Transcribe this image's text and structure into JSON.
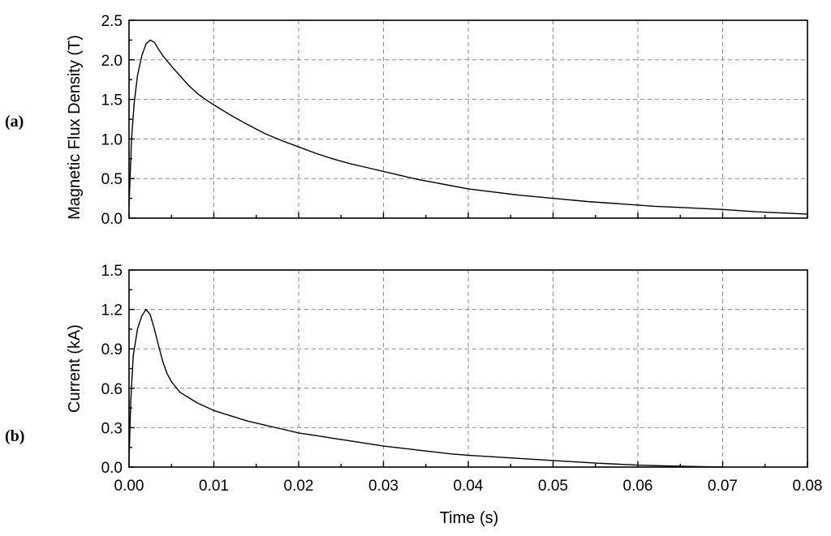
{
  "chart_data": [
    {
      "panel_label": "(a)",
      "type": "line",
      "ylabel": "Magnetic Flux Density (T)",
      "xlabel": "",
      "xlim": [
        0,
        0.08
      ],
      "ylim": [
        0,
        2.5
      ],
      "xticks": [
        0,
        0.01,
        0.02,
        0.03,
        0.04,
        0.05,
        0.06,
        0.07,
        0.08
      ],
      "yticks": [
        0.0,
        0.5,
        1.0,
        1.5,
        2.0,
        2.5
      ],
      "ytick_labels": [
        "0.0",
        "0.5",
        "1.0",
        "1.5",
        "2.0",
        "2.5"
      ],
      "grid": true,
      "series": [
        {
          "x": [
            0,
            0.0003,
            0.0006,
            0.001,
            0.0015,
            0.002,
            0.0025,
            0.003,
            0.0035,
            0.004,
            0.005,
            0.006,
            0.007,
            0.008,
            0.009,
            0.01,
            0.012,
            0.014,
            0.016,
            0.018,
            0.02,
            0.022,
            0.024,
            0.026,
            0.028,
            0.03,
            0.032,
            0.034,
            0.036,
            0.038,
            0.04,
            0.043,
            0.046,
            0.05,
            0.054,
            0.058,
            0.062,
            0.066,
            0.07,
            0.074,
            0.078,
            0.08
          ],
          "y": [
            0.15,
            1.0,
            1.45,
            1.8,
            2.05,
            2.2,
            2.25,
            2.22,
            2.13,
            2.05,
            1.92,
            1.8,
            1.68,
            1.58,
            1.5,
            1.43,
            1.3,
            1.18,
            1.07,
            0.98,
            0.9,
            0.82,
            0.75,
            0.69,
            0.64,
            0.59,
            0.54,
            0.49,
            0.45,
            0.41,
            0.37,
            0.33,
            0.29,
            0.25,
            0.21,
            0.18,
            0.15,
            0.13,
            0.11,
            0.08,
            0.06,
            0.05
          ]
        }
      ]
    },
    {
      "panel_label": "(b)",
      "type": "line",
      "ylabel": "Current (kA)",
      "xlabel": "Time (s)",
      "xlim": [
        0,
        0.08
      ],
      "ylim": [
        0,
        1.5
      ],
      "xticks": [
        0,
        0.01,
        0.02,
        0.03,
        0.04,
        0.05,
        0.06,
        0.07,
        0.08
      ],
      "xtick_labels": [
        "0.00",
        "0.01",
        "0.02",
        "0.03",
        "0.04",
        "0.05",
        "0.06",
        "0.07",
        "0.08"
      ],
      "yticks": [
        0.0,
        0.3,
        0.6,
        0.9,
        1.2,
        1.5
      ],
      "ytick_labels": [
        "0.0",
        "0.3",
        "0.6",
        "0.9",
        "1.2",
        "1.5"
      ],
      "grid": true,
      "series": [
        {
          "x": [
            0,
            0.0002,
            0.0005,
            0.001,
            0.0015,
            0.002,
            0.0025,
            0.003,
            0.0035,
            0.004,
            0.0045,
            0.005,
            0.006,
            0.007,
            0.008,
            0.009,
            0.01,
            0.012,
            0.014,
            0.016,
            0.018,
            0.02,
            0.022,
            0.024,
            0.026,
            0.028,
            0.03,
            0.034,
            0.038,
            0.04,
            0.045,
            0.05,
            0.055,
            0.06,
            0.063,
            0.066,
            0.07
          ],
          "y": [
            0.05,
            0.5,
            0.85,
            1.05,
            1.15,
            1.2,
            1.16,
            1.05,
            0.92,
            0.8,
            0.71,
            0.65,
            0.57,
            0.53,
            0.49,
            0.46,
            0.43,
            0.39,
            0.35,
            0.32,
            0.29,
            0.26,
            0.24,
            0.22,
            0.2,
            0.18,
            0.16,
            0.13,
            0.1,
            0.09,
            0.07,
            0.05,
            0.03,
            0.015,
            0.01,
            0.005,
            0.0
          ]
        }
      ]
    }
  ]
}
